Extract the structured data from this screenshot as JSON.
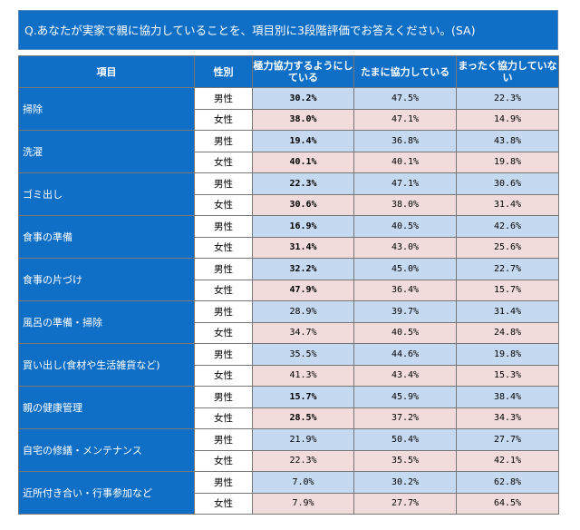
{
  "question": "Q.あなたが実家で親に協力していることを、項目別に3段階評価でお答えください。(SA)",
  "headers": {
    "item": "項目",
    "sex": "性別",
    "col1": "極力協力するようにしている",
    "col2": "たまに協力している",
    "col3": "まったく協力していない"
  },
  "rows": [
    {
      "item": "掃除",
      "male": {
        "sex": "男性",
        "v1": "30.2%",
        "v2": "47.5%",
        "v3": "22.3%"
      },
      "female": {
        "sex": "女性",
        "v1": "38.0%",
        "v2": "47.1%",
        "v3": "14.9%"
      }
    },
    {
      "item": "洗濯",
      "male": {
        "sex": "男性",
        "v1": "19.4%",
        "v2": "36.8%",
        "v3": "43.8%"
      },
      "female": {
        "sex": "女性",
        "v1": "40.1%",
        "v2": "40.1%",
        "v3": "19.8%"
      }
    },
    {
      "item": "ゴミ出し",
      "male": {
        "sex": "男性",
        "v1": "22.3%",
        "v2": "47.1%",
        "v3": "30.6%"
      },
      "female": {
        "sex": "女性",
        "v1": "30.6%",
        "v2": "38.0%",
        "v3": "31.4%"
      }
    },
    {
      "item": "食事の準備",
      "male": {
        "sex": "男性",
        "v1": "16.9%",
        "v2": "40.5%",
        "v3": "42.6%"
      },
      "female": {
        "sex": "女性",
        "v1": "31.4%",
        "v2": "43.0%",
        "v3": "25.6%"
      }
    },
    {
      "item": "食事の片づけ",
      "male": {
        "sex": "男性",
        "v1": "32.2%",
        "v2": "45.0%",
        "v3": "22.7%"
      },
      "female": {
        "sex": "女性",
        "v1": "47.9%",
        "v2": "36.4%",
        "v3": "15.7%"
      }
    },
    {
      "item": "風呂の準備・掃除",
      "male": {
        "sex": "男性",
        "v1": "28.9%",
        "v2": "39.7%",
        "v3": "31.4%"
      },
      "female": {
        "sex": "女性",
        "v1": "34.7%",
        "v2": "40.5%",
        "v3": "24.8%"
      }
    },
    {
      "item": "買い出し(食材や生活雑貨など)",
      "male": {
        "sex": "男性",
        "v1": "35.5%",
        "v2": "44.6%",
        "v3": "19.8%"
      },
      "female": {
        "sex": "女性",
        "v1": "41.3%",
        "v2": "43.4%",
        "v3": "15.3%"
      }
    },
    {
      "item": "親の健康管理",
      "male": {
        "sex": "男性",
        "v1": "15.7%",
        "v2": "45.9%",
        "v3": "38.4%"
      },
      "female": {
        "sex": "女性",
        "v1": "28.5%",
        "v2": "37.2%",
        "v3": "34.3%"
      }
    },
    {
      "item": "自宅の修繕・メンテナンス",
      "male": {
        "sex": "男性",
        "v1": "21.9%",
        "v2": "50.4%",
        "v3": "27.7%"
      },
      "female": {
        "sex": "女性",
        "v1": "22.3%",
        "v2": "35.5%",
        "v3": "42.1%"
      }
    },
    {
      "item": "近所付き合い・行事参加など",
      "male": {
        "sex": "男性",
        "v1": "7.0%",
        "v2": "30.2%",
        "v3": "62.8%"
      },
      "female": {
        "sex": "女性",
        "v1": "7.9%",
        "v2": "27.7%",
        "v3": "64.5%"
      }
    }
  ],
  "colors": {
    "header_blue": "#0f6fc6",
    "male_row": "#c5d9f1",
    "female_row": "#f2dcdb"
  }
}
